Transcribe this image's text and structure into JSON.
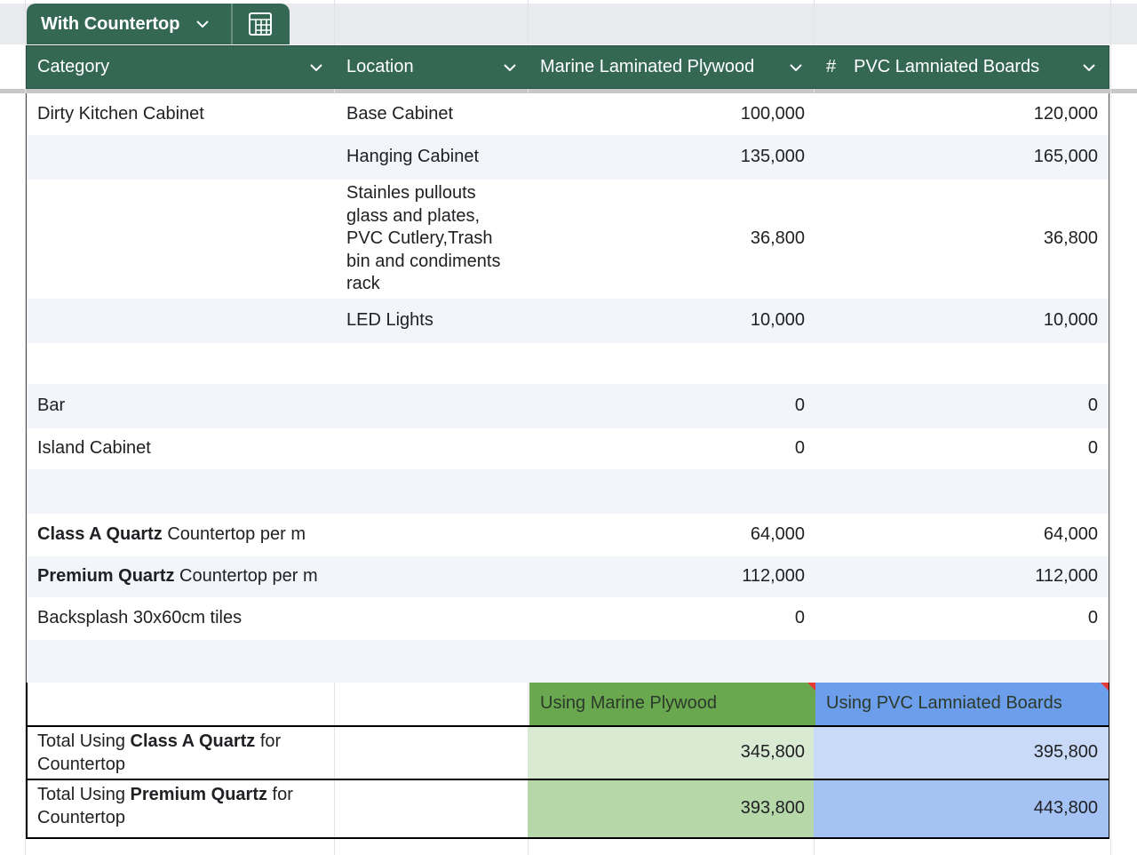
{
  "tab": {
    "name": "With Countertop"
  },
  "columns": [
    {
      "label": "Category"
    },
    {
      "label": "Location"
    },
    {
      "label": "Marine Laminated Plywood"
    },
    {
      "label": "PVC Lamniated Boards",
      "type_icon": "#"
    }
  ],
  "rows": [
    {
      "category": [
        {
          "text": "Dirty Kitchen Cabinet"
        }
      ],
      "location": "Base Cabinet",
      "marine": "100,000",
      "pvc": "120,000"
    },
    {
      "location": "Hanging Cabinet",
      "marine": "135,000",
      "pvc": "165,000"
    },
    {
      "location": "Stainles pullouts glass and plates, PVC Cutlery,Trash bin and condiments rack",
      "marine": "36,800",
      "pvc": "36,800"
    },
    {
      "location": "LED Lights",
      "marine": "10,000",
      "pvc": "10,000"
    },
    {},
    {
      "category": [
        {
          "text": "Bar"
        }
      ],
      "marine": "0",
      "pvc": "0"
    },
    {
      "category": [
        {
          "text": "Island Cabinet"
        }
      ],
      "marine": "0",
      "pvc": "0"
    },
    {},
    {
      "category": [
        {
          "text": "Class A Quartz",
          "bold": true
        },
        {
          "text": " Countertop per m"
        }
      ],
      "marine": "64,000",
      "pvc": "64,000"
    },
    {
      "category": [
        {
          "text": "Premium Quartz",
          "bold": true
        },
        {
          "text": " Countertop per m"
        }
      ],
      "marine": "112,000",
      "pvc": "112,000"
    },
    {
      "category": [
        {
          "text": "Backsplash 30x60cm tiles"
        }
      ],
      "marine": "0",
      "pvc": "0"
    },
    {}
  ],
  "summary": {
    "headers": [
      "Using Marine Plywood",
      "Using PVC Lamniated Boards"
    ],
    "rows": [
      {
        "label": [
          {
            "text": "Total Using "
          },
          {
            "text": "Class A Quartz",
            "bold": true
          },
          {
            "text": " for Countertop"
          }
        ],
        "values": [
          "345,800",
          "395,800"
        ]
      },
      {
        "label": [
          {
            "text": "Total Using "
          },
          {
            "text": "Premium Quartz",
            "bold": true
          },
          {
            "text": " for Countertop"
          }
        ],
        "values": [
          "393,800",
          "443,800"
        ]
      }
    ]
  }
}
